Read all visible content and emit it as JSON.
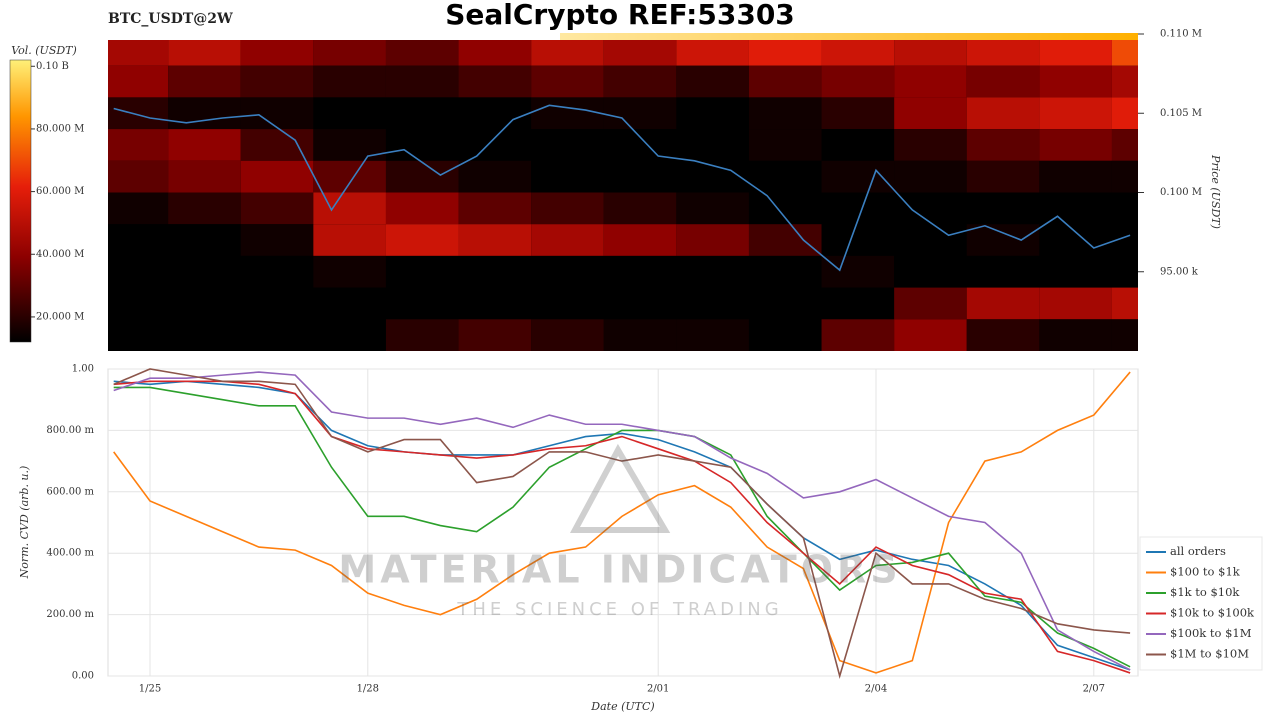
{
  "header": {
    "title": "SealCrypto REF:53303"
  },
  "watermark": {
    "name": "MATERIAL INDICATORS",
    "tagline": "THE SCIENCE OF TRADING"
  },
  "chart_data": [
    {
      "type": "heatmap",
      "title": "BTC_USDT@2W",
      "ylabel": "Price (USDT)",
      "ylim": [
        90000,
        110000
      ],
      "yticks": [
        {
          "value": 95000,
          "label": "95.00 k"
        },
        {
          "value": 100000,
          "label": "0.100 M"
        },
        {
          "value": 105000,
          "label": "0.105 M"
        },
        {
          "value": 110000,
          "label": "0.110 M"
        }
      ],
      "price": {
        "color": "#3a7fc0",
        "values": [
          105300,
          104700,
          104400,
          104700,
          104900,
          103300,
          98900,
          102300,
          102700,
          101100,
          102300,
          104600,
          105500,
          105200,
          104700,
          102300,
          102000,
          101400,
          99800,
          97000,
          95100,
          101400,
          98900,
          97300,
          97900,
          97000,
          98500,
          96500,
          97300
        ]
      },
      "heatmap": {
        "levels": [
          109000,
          107000,
          105000,
          103000,
          101000,
          99000,
          97000,
          95000,
          93000,
          91000
        ],
        "values": [
          [
            45000000,
            50000000,
            40000000,
            35000000,
            30000000,
            40000000,
            50000000,
            45000000,
            55000000,
            60000000,
            55000000,
            50000000,
            55000000,
            60000000,
            70000000
          ],
          [
            40000000,
            30000000,
            25000000,
            20000000,
            20000000,
            25000000,
            30000000,
            25000000,
            20000000,
            30000000,
            35000000,
            40000000,
            35000000,
            40000000,
            45000000
          ],
          [
            20000000,
            15000000,
            15000000,
            12000000,
            12000000,
            12000000,
            15000000,
            15000000,
            12000000,
            15000000,
            20000000,
            40000000,
            50000000,
            55000000,
            60000000
          ],
          [
            35000000,
            40000000,
            25000000,
            15000000,
            12000000,
            12000000,
            12000000,
            12000000,
            12000000,
            15000000,
            12000000,
            20000000,
            30000000,
            35000000,
            30000000
          ],
          [
            30000000,
            35000000,
            40000000,
            30000000,
            20000000,
            15000000,
            12000000,
            12000000,
            12000000,
            12000000,
            15000000,
            15000000,
            20000000,
            15000000,
            15000000
          ],
          [
            15000000,
            20000000,
            25000000,
            50000000,
            40000000,
            30000000,
            25000000,
            20000000,
            15000000,
            12000000,
            12000000,
            12000000,
            12000000,
            12000000,
            12000000
          ],
          [
            12000000,
            12000000,
            15000000,
            50000000,
            55000000,
            50000000,
            45000000,
            40000000,
            35000000,
            25000000,
            12000000,
            12000000,
            15000000,
            12000000,
            12000000
          ],
          [
            12000000,
            12000000,
            12000000,
            15000000,
            12000000,
            12000000,
            12000000,
            12000000,
            12000000,
            12000000,
            15000000,
            12000000,
            12000000,
            12000000,
            12000000
          ],
          [
            12000000,
            12000000,
            12000000,
            12000000,
            12000000,
            12000000,
            12000000,
            12000000,
            12000000,
            12000000,
            12000000,
            30000000,
            45000000,
            45000000,
            50000000
          ],
          [
            12000000,
            12000000,
            12000000,
            12000000,
            20000000,
            25000000,
            20000000,
            15000000,
            15000000,
            12000000,
            30000000,
            40000000,
            20000000,
            15000000,
            15000000
          ]
        ]
      },
      "colorbar": {
        "label": "Vol. (USDT)",
        "lim": [
          12000000,
          102000000
        ],
        "ticks": [
          {
            "value": 20000000,
            "label": "20.000 M"
          },
          {
            "value": 40000000,
            "label": "40.000 M"
          },
          {
            "value": 60000000,
            "label": "60.000 M"
          },
          {
            "value": 80000000,
            "label": "80.000 M"
          },
          {
            "value": 100000000,
            "label": "0.10 B"
          }
        ]
      }
    },
    {
      "type": "line",
      "xlabel": "Date (UTC)",
      "ylabel": "Norm. CVD (arb. u.)",
      "categories": [
        null,
        "1/25",
        null,
        null,
        null,
        null,
        null,
        "1/28",
        null,
        null,
        null,
        null,
        null,
        null,
        null,
        "2/01",
        null,
        null,
        null,
        null,
        null,
        "2/04",
        null,
        null,
        null,
        null,
        null,
        "2/07",
        null
      ],
      "ylim": [
        0,
        1
      ],
      "yticks": [
        {
          "value": 0,
          "label": "0.00"
        },
        {
          "value": 0.2,
          "label": "200.00 m"
        },
        {
          "value": 0.4,
          "label": "400.00 m"
        },
        {
          "value": 0.6,
          "label": "600.00 m"
        },
        {
          "value": 0.8,
          "label": "800.00 m"
        },
        {
          "value": 1,
          "label": "1.00"
        }
      ],
      "grid": true,
      "legend": "lower right",
      "series": [
        {
          "name": "all orders",
          "color": "#1f77b4",
          "values": [
            0.96,
            0.95,
            0.96,
            0.95,
            0.94,
            0.92,
            0.8,
            0.75,
            0.73,
            0.72,
            0.72,
            0.72,
            0.75,
            0.78,
            0.79,
            0.77,
            0.73,
            0.68,
            0.56,
            0.45,
            0.38,
            0.41,
            0.38,
            0.36,
            0.3,
            0.23,
            0.1,
            0.06,
            0.02
          ]
        },
        {
          "name": "$100 to $1k",
          "color": "#ff7f0e",
          "values": [
            0.73,
            0.57,
            0.52,
            0.47,
            0.42,
            0.41,
            0.36,
            0.27,
            0.23,
            0.2,
            0.25,
            0.33,
            0.4,
            0.42,
            0.52,
            0.59,
            0.62,
            0.55,
            0.42,
            0.35,
            0.05,
            0.01,
            0.05,
            0.5,
            0.7,
            0.73,
            0.8,
            0.85,
            0.99
          ]
        },
        {
          "name": "$1k to $10k",
          "color": "#2ca02c",
          "values": [
            0.94,
            0.94,
            0.92,
            0.9,
            0.88,
            0.88,
            0.68,
            0.52,
            0.52,
            0.49,
            0.47,
            0.55,
            0.68,
            0.74,
            0.8,
            0.8,
            0.78,
            0.72,
            0.52,
            0.4,
            0.28,
            0.36,
            0.37,
            0.4,
            0.26,
            0.24,
            0.14,
            0.09,
            0.03
          ]
        },
        {
          "name": "$10k to $100k",
          "color": "#d62728",
          "values": [
            0.95,
            0.96,
            0.96,
            0.96,
            0.95,
            0.92,
            0.78,
            0.74,
            0.73,
            0.72,
            0.71,
            0.72,
            0.74,
            0.75,
            0.78,
            0.74,
            0.7,
            0.63,
            0.5,
            0.4,
            0.3,
            0.42,
            0.36,
            0.33,
            0.27,
            0.25,
            0.08,
            0.05,
            0.01
          ]
        },
        {
          "name": "$100k to $1M",
          "color": "#9467bd",
          "values": [
            0.93,
            0.97,
            0.97,
            0.98,
            0.99,
            0.98,
            0.86,
            0.84,
            0.84,
            0.82,
            0.84,
            0.81,
            0.85,
            0.82,
            0.82,
            0.8,
            0.78,
            0.71,
            0.66,
            0.58,
            0.6,
            0.64,
            0.58,
            0.52,
            0.5,
            0.4,
            0.15,
            0.08,
            0.02
          ]
        },
        {
          "name": "$1M to $10M",
          "color": "#8c564b",
          "values": [
            0.95,
            1.0,
            0.98,
            0.96,
            0.96,
            0.95,
            0.78,
            0.73,
            0.77,
            0.77,
            0.63,
            0.65,
            0.73,
            0.73,
            0.7,
            0.72,
            0.7,
            0.68,
            0.56,
            0.45,
            0.0,
            0.4,
            0.3,
            0.3,
            0.25,
            0.22,
            0.17,
            0.15,
            0.14
          ]
        }
      ]
    }
  ]
}
